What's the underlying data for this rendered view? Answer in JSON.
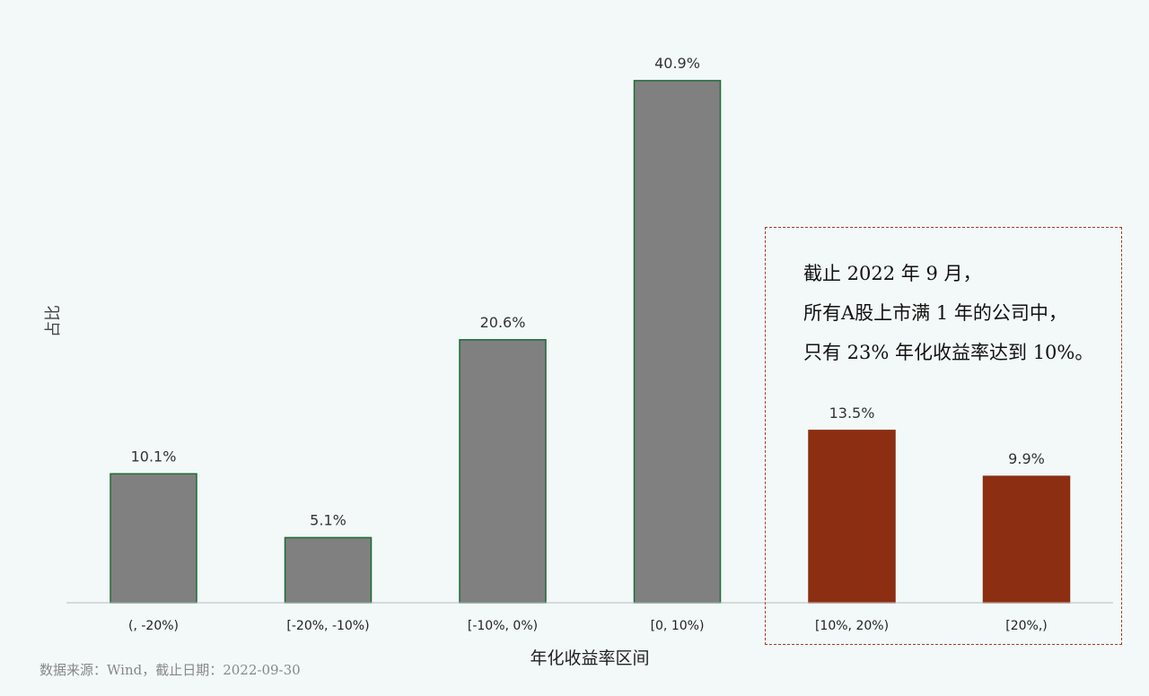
{
  "chart_data": {
    "type": "bar",
    "categories": [
      "(, -20%)",
      "[-20%, -10%)",
      "[-10%, 0%)",
      "[0, 10%)",
      "[10%, 20%)",
      "[20%,)"
    ],
    "values": [
      10.1,
      5.1,
      20.6,
      40.9,
      13.5,
      9.9
    ],
    "value_labels": [
      "10.1%",
      "5.1%",
      "20.6%",
      "40.9%",
      "13.5%",
      "9.9%"
    ],
    "xlabel": "年化收益率区间",
    "ylabel": "占比",
    "ylim": [
      0,
      43
    ],
    "grid": false,
    "colors": {
      "default_fill": "#808080",
      "default_stroke": "#1e6b35",
      "highlight_fill": "#8b2e12",
      "axis": "#bbbbbb"
    },
    "highlight_indices": [
      4,
      5
    ]
  },
  "annotation": {
    "lines": [
      "截止 2022 年 9 月，",
      "所有A股上市满 1 年的公司中，",
      "只有 23% 年化收益率达到 10%。"
    ],
    "border_color": "#a83a2a"
  },
  "source": "数据来源：Wind，截止日期：2022-09-30"
}
